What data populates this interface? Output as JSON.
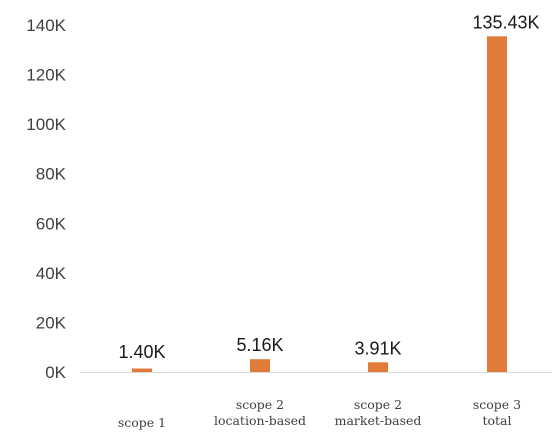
{
  "chart_data": {
    "type": "bar",
    "categories": [
      [
        "scope 1"
      ],
      [
        "scope 2",
        "location-based"
      ],
      [
        "scope 2",
        "market-based"
      ],
      [
        "scope 3",
        "total"
      ]
    ],
    "values": [
      1400,
      5160,
      3910,
      135430
    ],
    "data_labels": [
      "1.40K",
      "5.16K",
      "3.91K",
      "135.43K"
    ],
    "ylim": [
      0,
      140000
    ],
    "yticks": [
      {
        "value": 0,
        "label": "0K"
      },
      {
        "value": 20000,
        "label": "20K"
      },
      {
        "value": 40000,
        "label": "40K"
      },
      {
        "value": 60000,
        "label": "60K"
      },
      {
        "value": 80000,
        "label": "80K"
      },
      {
        "value": 100000,
        "label": "100K"
      },
      {
        "value": 120000,
        "label": "120K"
      },
      {
        "value": 140000,
        "label": "140K"
      }
    ],
    "grid": false,
    "legend": "none",
    "title": "",
    "xlabel": "",
    "ylabel": "",
    "bar_color": "#e07b39",
    "baseline_color": "#d9d9d9",
    "tick_color": "#404040"
  }
}
